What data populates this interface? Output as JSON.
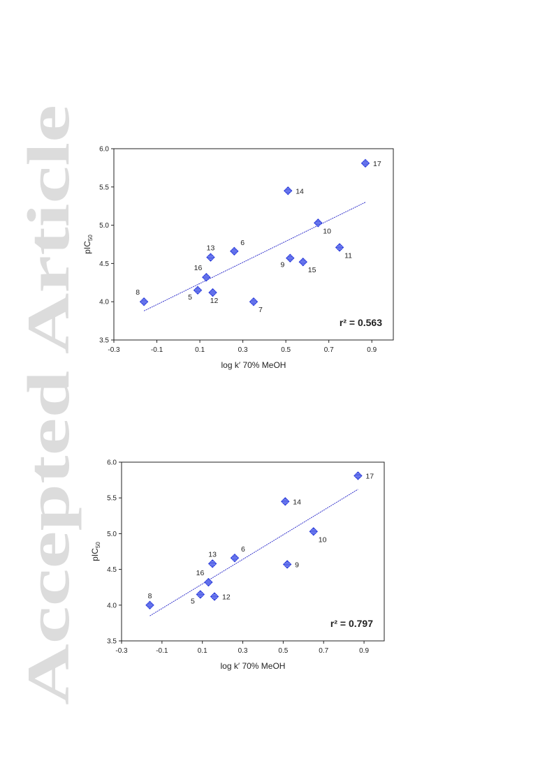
{
  "watermark": {
    "text": "Accepted Article",
    "color": "#dcdcdc"
  },
  "colors": {
    "marker": "#3344dd",
    "marker_light": "#aab4ff",
    "trend": "#3333cc",
    "axis": "#222222"
  },
  "chart_data": [
    {
      "type": "scatter",
      "xlabel": "log k′ 70% MeOH",
      "ylabel_main": "pIC",
      "ylabel_sub": "50",
      "xlim": [
        -0.3,
        1.0
      ],
      "ylim": [
        3.5,
        6.0
      ],
      "xticks": [
        -0.3,
        -0.1,
        0.1,
        0.3,
        0.5,
        0.7,
        0.9
      ],
      "yticks": [
        3.5,
        4.0,
        4.5,
        5.0,
        5.5,
        6.0
      ],
      "r2_label": "r² = 0.563",
      "points": [
        {
          "label": "17",
          "x": 0.87,
          "y": 5.81,
          "pos": "right"
        },
        {
          "label": "14",
          "x": 0.51,
          "y": 5.45,
          "pos": "right"
        },
        {
          "label": "10",
          "x": 0.65,
          "y": 5.03,
          "pos": "below-right"
        },
        {
          "label": "11",
          "x": 0.75,
          "y": 4.71,
          "pos": "below-right"
        },
        {
          "label": "6",
          "x": 0.26,
          "y": 4.66,
          "pos": "above-right"
        },
        {
          "label": "13",
          "x": 0.15,
          "y": 4.58,
          "pos": "above"
        },
        {
          "label": "9",
          "x": 0.52,
          "y": 4.57,
          "pos": "below-left"
        },
        {
          "label": "15",
          "x": 0.58,
          "y": 4.52,
          "pos": "below-right"
        },
        {
          "label": "16",
          "x": 0.13,
          "y": 4.32,
          "pos": "above-left"
        },
        {
          "label": "5",
          "x": 0.09,
          "y": 4.15,
          "pos": "below-left"
        },
        {
          "label": "12",
          "x": 0.16,
          "y": 4.12,
          "pos": "below"
        },
        {
          "label": "8",
          "x": -0.16,
          "y": 4.0,
          "pos": "above-left"
        },
        {
          "label": "7",
          "x": 0.35,
          "y": 4.0,
          "pos": "below-right"
        }
      ],
      "trendline": {
        "x": [
          -0.16,
          0.87
        ],
        "y": [
          3.88,
          5.3
        ]
      }
    },
    {
      "type": "scatter",
      "xlabel": "log k′ 70% MeOH",
      "ylabel_main": "pIC",
      "ylabel_sub": "50",
      "xlim": [
        -0.3,
        1.0
      ],
      "ylim": [
        3.5,
        6.0
      ],
      "xticks": [
        -0.3,
        -0.1,
        0.1,
        0.3,
        0.5,
        0.7,
        0.9
      ],
      "yticks": [
        3.5,
        4.0,
        4.5,
        5.0,
        5.5,
        6.0
      ],
      "r2_label": "r² = 0.797",
      "points": [
        {
          "label": "17",
          "x": 0.87,
          "y": 5.81,
          "pos": "right"
        },
        {
          "label": "14",
          "x": 0.51,
          "y": 5.45,
          "pos": "right"
        },
        {
          "label": "10",
          "x": 0.65,
          "y": 5.03,
          "pos": "below-right"
        },
        {
          "label": "6",
          "x": 0.26,
          "y": 4.66,
          "pos": "above-right"
        },
        {
          "label": "13",
          "x": 0.15,
          "y": 4.58,
          "pos": "above"
        },
        {
          "label": "9",
          "x": 0.52,
          "y": 4.57,
          "pos": "right"
        },
        {
          "label": "16",
          "x": 0.13,
          "y": 4.32,
          "pos": "above-left"
        },
        {
          "label": "5",
          "x": 0.09,
          "y": 4.15,
          "pos": "below-left"
        },
        {
          "label": "12",
          "x": 0.16,
          "y": 4.12,
          "pos": "right"
        },
        {
          "label": "8",
          "x": -0.16,
          "y": 4.0,
          "pos": "above"
        }
      ],
      "trendline": {
        "x": [
          -0.16,
          0.87
        ],
        "y": [
          3.85,
          5.62
        ]
      }
    }
  ]
}
